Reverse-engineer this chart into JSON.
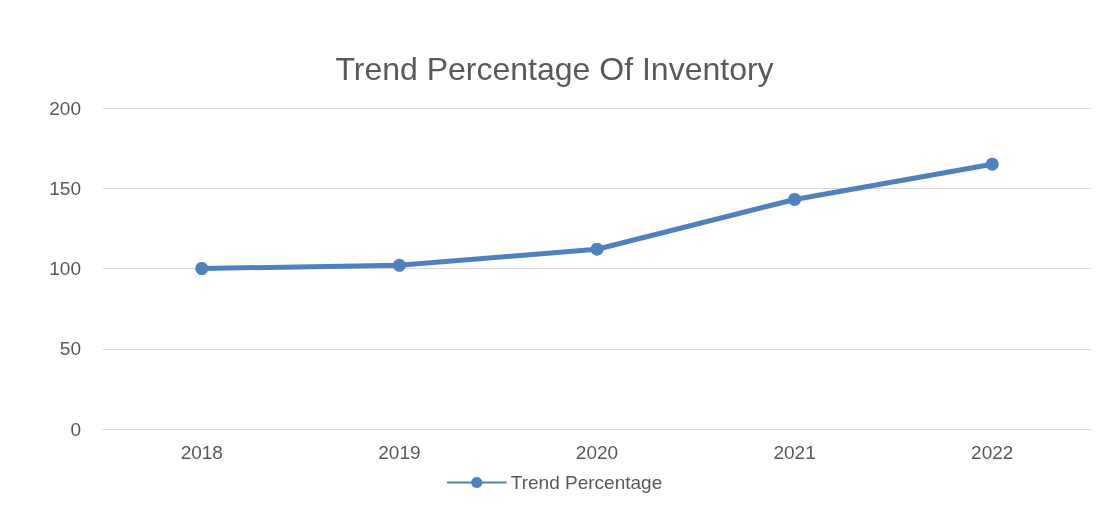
{
  "chart_data": {
    "type": "line",
    "title": "Trend Percentage Of Inventory",
    "categories": [
      "2018",
      "2019",
      "2020",
      "2021",
      "2022"
    ],
    "series": [
      {
        "name": "Trend Percentage",
        "color": "#4f81bd",
        "values": [
          100,
          102,
          112,
          143,
          165
        ]
      }
    ],
    "ylim": [
      0,
      200
    ],
    "yticks": [
      0,
      50,
      100,
      150,
      200
    ],
    "grid": "y",
    "legend": "bottom",
    "marker": "circle",
    "line_style": "solid"
  }
}
